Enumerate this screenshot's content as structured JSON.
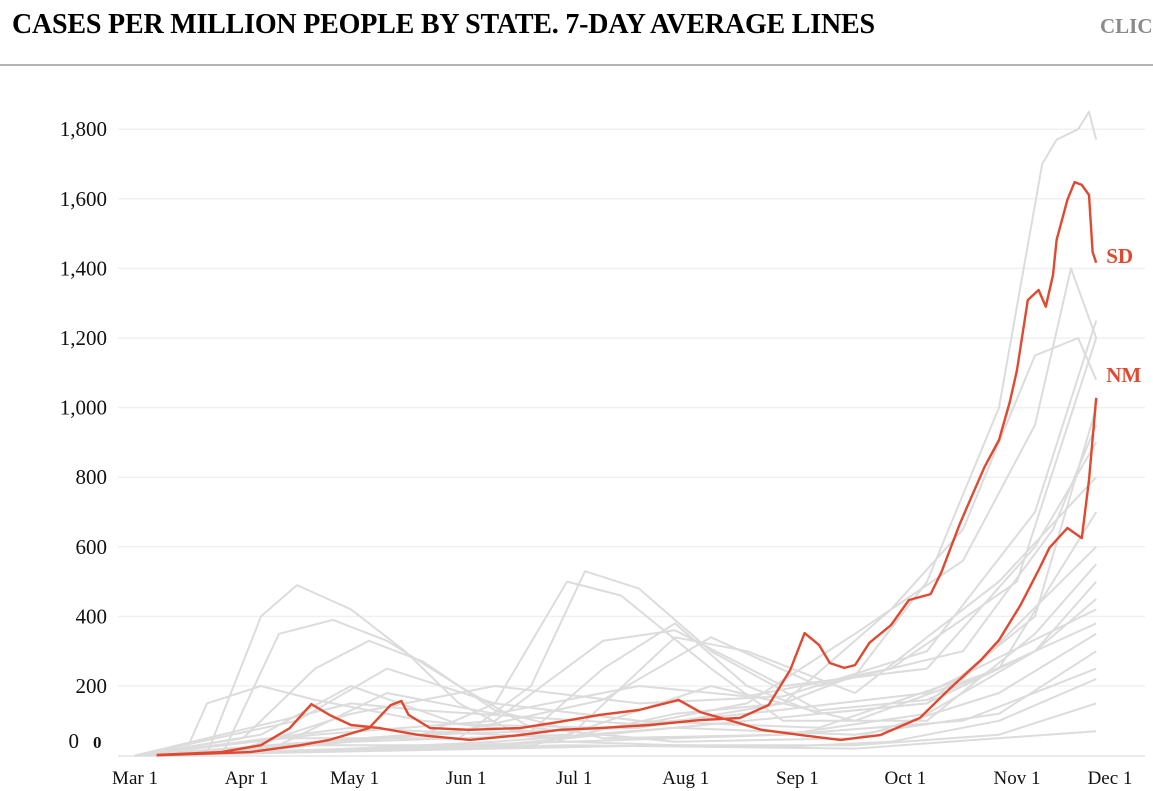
{
  "header": {
    "title": "CASES PER MILLION PEOPLE BY STATE. 7-DAY AVERAGE LINES",
    "click_label": "CLIC"
  },
  "chart_data": {
    "type": "line",
    "title": "CASES PER MILLION PEOPLE BY STATE. 7-DAY AVERAGE LINES",
    "xlabel": "",
    "ylabel": "",
    "x_unit": "days since Mar 1 (2020)",
    "xlim": [
      0,
      270
    ],
    "ylim": [
      0,
      1850
    ],
    "grid": true,
    "yticks": [
      {
        "v": 0,
        "label": "0"
      },
      {
        "v": 200,
        "label": "200"
      },
      {
        "v": 400,
        "label": "400"
      },
      {
        "v": 600,
        "label": "600"
      },
      {
        "v": 800,
        "label": "800"
      },
      {
        "v": 1000,
        "label": "1,000"
      },
      {
        "v": 1200,
        "label": "1,200"
      },
      {
        "v": 1400,
        "label": "1,400"
      },
      {
        "v": 1600,
        "label": "1,600"
      },
      {
        "v": 1800,
        "label": "1,800"
      }
    ],
    "xticks": [
      {
        "d": 0,
        "label": "Mar 1"
      },
      {
        "d": 31,
        "label": "Apr 1"
      },
      {
        "d": 61,
        "label": "May 1"
      },
      {
        "d": 92,
        "label": "Jun 1"
      },
      {
        "d": 122,
        "label": "Jul 1"
      },
      {
        "d": 153,
        "label": "Aug 1"
      },
      {
        "d": 184,
        "label": "Sep 1"
      },
      {
        "d": 214,
        "label": "Oct 1"
      },
      {
        "d": 245,
        "label": "Nov 1"
      },
      {
        "d": 271,
        "label": "Dec 1"
      }
    ],
    "start_annotation": "0",
    "colors": {
      "highlight": "#e0492f",
      "background_lines": "#dcdcdc",
      "grid": "#f0f0f0"
    },
    "highlighted": [
      {
        "name": "SD",
        "points": [
          [
            6,
            2
          ],
          [
            24,
            10
          ],
          [
            35,
            30
          ],
          [
            43,
            79
          ],
          [
            49,
            148
          ],
          [
            54,
            117
          ],
          [
            60,
            88
          ],
          [
            68,
            79
          ],
          [
            79,
            59
          ],
          [
            93,
            45
          ],
          [
            107,
            59
          ],
          [
            118,
            74
          ],
          [
            129,
            79
          ],
          [
            143,
            88
          ],
          [
            157,
            102
          ],
          [
            168,
            108
          ],
          [
            176,
            145
          ],
          [
            182,
            246
          ],
          [
            186,
            352
          ],
          [
            190,
            318
          ],
          [
            193,
            266
          ],
          [
            197,
            252
          ],
          [
            200,
            260
          ],
          [
            204,
            324
          ],
          [
            210,
            375
          ],
          [
            215,
            447
          ],
          [
            221,
            464
          ],
          [
            224,
            527
          ],
          [
            229,
            663
          ],
          [
            232,
            735
          ],
          [
            236,
            830
          ],
          [
            240,
            907
          ],
          [
            243,
            1016
          ],
          [
            245,
            1108
          ],
          [
            248,
            1309
          ],
          [
            251,
            1338
          ],
          [
            253,
            1290
          ],
          [
            255,
            1381
          ],
          [
            256,
            1482
          ],
          [
            259,
            1597
          ],
          [
            261,
            1648
          ],
          [
            263,
            1640
          ],
          [
            265,
            1611
          ],
          [
            266,
            1447
          ],
          [
            267,
            1416
          ]
        ]
      },
      {
        "name": "NM",
        "points": [
          [
            6,
            1
          ],
          [
            32,
            10
          ],
          [
            46,
            30
          ],
          [
            54,
            45
          ],
          [
            65,
            79
          ],
          [
            71,
            145
          ],
          [
            74,
            157
          ],
          [
            76,
            117
          ],
          [
            82,
            79
          ],
          [
            93,
            74
          ],
          [
            107,
            79
          ],
          [
            118,
            97
          ],
          [
            129,
            117
          ],
          [
            140,
            131
          ],
          [
            151,
            160
          ],
          [
            157,
            125
          ],
          [
            165,
            102
          ],
          [
            174,
            74
          ],
          [
            185,
            59
          ],
          [
            196,
            45
          ],
          [
            207,
            59
          ],
          [
            218,
            108
          ],
          [
            226,
            189
          ],
          [
            235,
            275
          ],
          [
            240,
            332
          ],
          [
            246,
            433
          ],
          [
            251,
            533
          ],
          [
            254,
            597
          ],
          [
            259,
            654
          ],
          [
            263,
            625
          ],
          [
            265,
            792
          ],
          [
            267,
            1028
          ]
        ]
      }
    ],
    "background_series": [
      [
        [
          0,
          0
        ],
        [
          20,
          5
        ],
        [
          35,
          400
        ],
        [
          45,
          490
        ],
        [
          60,
          420
        ],
        [
          75,
          300
        ],
        [
          90,
          150
        ],
        [
          105,
          70
        ],
        [
          120,
          40
        ],
        [
          150,
          30
        ],
        [
          180,
          25
        ],
        [
          210,
          40
        ],
        [
          240,
          100
        ],
        [
          267,
          220
        ]
      ],
      [
        [
          0,
          0
        ],
        [
          25,
          20
        ],
        [
          40,
          350
        ],
        [
          55,
          390
        ],
        [
          70,
          330
        ],
        [
          90,
          200
        ],
        [
          110,
          80
        ],
        [
          150,
          40
        ],
        [
          200,
          50
        ],
        [
          240,
          180
        ],
        [
          267,
          350
        ]
      ],
      [
        [
          0,
          0
        ],
        [
          30,
          50
        ],
        [
          50,
          250
        ],
        [
          65,
          330
        ],
        [
          80,
          270
        ],
        [
          100,
          130
        ],
        [
          130,
          50
        ],
        [
          180,
          60
        ],
        [
          220,
          120
        ],
        [
          250,
          300
        ],
        [
          267,
          500
        ]
      ],
      [
        [
          0,
          0
        ],
        [
          14,
          10
        ],
        [
          20,
          150
        ],
        [
          35,
          200
        ],
        [
          50,
          160
        ],
        [
          80,
          100
        ],
        [
          110,
          70
        ],
        [
          130,
          250
        ],
        [
          150,
          380
        ],
        [
          170,
          200
        ],
        [
          190,
          120
        ],
        [
          220,
          150
        ],
        [
          250,
          300
        ],
        [
          267,
          450
        ]
      ],
      [
        [
          0,
          0
        ],
        [
          40,
          30
        ],
        [
          80,
          60
        ],
        [
          100,
          150
        ],
        [
          120,
          500
        ],
        [
          135,
          460
        ],
        [
          160,
          250
        ],
        [
          180,
          100
        ],
        [
          220,
          100
        ],
        [
          250,
          350
        ],
        [
          267,
          550
        ]
      ],
      [
        [
          0,
          0
        ],
        [
          40,
          50
        ],
        [
          90,
          50
        ],
        [
          110,
          200
        ],
        [
          125,
          530
        ],
        [
          140,
          480
        ],
        [
          160,
          300
        ],
        [
          190,
          130
        ],
        [
          220,
          160
        ],
        [
          250,
          300
        ],
        [
          267,
          380
        ]
      ],
      [
        [
          0,
          0
        ],
        [
          40,
          20
        ],
        [
          80,
          60
        ],
        [
          140,
          80
        ],
        [
          180,
          150
        ],
        [
          200,
          230
        ],
        [
          220,
          500
        ],
        [
          240,
          1000
        ],
        [
          252,
          1700
        ],
        [
          256,
          1770
        ],
        [
          262,
          1800
        ],
        [
          265,
          1850
        ],
        [
          267,
          1770
        ]
      ],
      [
        [
          0,
          0
        ],
        [
          50,
          30
        ],
        [
          110,
          30
        ],
        [
          150,
          120
        ],
        [
          180,
          150
        ],
        [
          210,
          420
        ],
        [
          230,
          650
        ],
        [
          250,
          1150
        ],
        [
          262,
          1200
        ],
        [
          267,
          1080
        ]
      ],
      [
        [
          0,
          0
        ],
        [
          60,
          150
        ],
        [
          80,
          130
        ],
        [
          140,
          90
        ],
        [
          170,
          150
        ],
        [
          200,
          350
        ],
        [
          230,
          560
        ],
        [
          250,
          950
        ],
        [
          260,
          1400
        ],
        [
          267,
          1200
        ]
      ],
      [
        [
          0,
          0
        ],
        [
          50,
          10
        ],
        [
          100,
          20
        ],
        [
          150,
          30
        ],
        [
          200,
          30
        ],
        [
          240,
          60
        ],
        [
          267,
          150
        ]
      ],
      [
        [
          0,
          0
        ],
        [
          60,
          40
        ],
        [
          120,
          60
        ],
        [
          160,
          200
        ],
        [
          200,
          100
        ],
        [
          240,
          250
        ],
        [
          267,
          700
        ]
      ],
      [
        [
          0,
          0
        ],
        [
          50,
          60
        ],
        [
          100,
          100
        ],
        [
          130,
          330
        ],
        [
          150,
          360
        ],
        [
          180,
          200
        ],
        [
          220,
          250
        ],
        [
          250,
          600
        ],
        [
          267,
          900
        ]
      ],
      [
        [
          0,
          0
        ],
        [
          45,
          100
        ],
        [
          70,
          250
        ],
        [
          100,
          150
        ],
        [
          140,
          100
        ],
        [
          190,
          80
        ],
        [
          230,
          220
        ],
        [
          267,
          600
        ]
      ],
      [
        [
          0,
          0
        ],
        [
          40,
          10
        ],
        [
          100,
          40
        ],
        [
          150,
          80
        ],
        [
          200,
          60
        ],
        [
          240,
          120
        ],
        [
          267,
          300
        ]
      ],
      [
        [
          0,
          0
        ],
        [
          100,
          30
        ],
        [
          170,
          100
        ],
        [
          220,
          150
        ],
        [
          250,
          400
        ],
        [
          267,
          1000
        ]
      ],
      [
        [
          0,
          0
        ],
        [
          60,
          80
        ],
        [
          120,
          50
        ],
        [
          150,
          340
        ],
        [
          170,
          300
        ],
        [
          200,
          180
        ],
        [
          240,
          500
        ],
        [
          267,
          800
        ]
      ],
      [
        [
          0,
          0
        ],
        [
          120,
          30
        ],
        [
          200,
          20
        ],
        [
          267,
          70
        ]
      ],
      [
        [
          0,
          0
        ],
        [
          30,
          20
        ],
        [
          60,
          120
        ],
        [
          100,
          200
        ],
        [
          140,
          150
        ],
        [
          180,
          170
        ],
        [
          220,
          300
        ],
        [
          250,
          700
        ],
        [
          267,
          1250
        ]
      ],
      [
        [
          0,
          0
        ],
        [
          40,
          30
        ],
        [
          70,
          180
        ],
        [
          100,
          120
        ],
        [
          140,
          200
        ],
        [
          170,
          170
        ],
        [
          210,
          250
        ],
        [
          245,
          500
        ],
        [
          267,
          1200
        ]
      ],
      [
        [
          0,
          0
        ],
        [
          50,
          40
        ],
        [
          90,
          70
        ],
        [
          130,
          160
        ],
        [
          160,
          340
        ],
        [
          190,
          200
        ],
        [
          230,
          300
        ],
        [
          255,
          650
        ],
        [
          267,
          950
        ]
      ],
      [
        [
          0,
          0
        ],
        [
          60,
          20
        ],
        [
          120,
          40
        ],
        [
          180,
          60
        ],
        [
          230,
          100
        ],
        [
          267,
          250
        ]
      ],
      [
        [
          0,
          0
        ],
        [
          35,
          60
        ],
        [
          60,
          200
        ],
        [
          90,
          90
        ],
        [
          130,
          80
        ],
        [
          170,
          120
        ],
        [
          220,
          180
        ],
        [
          267,
          420
        ]
      ]
    ]
  }
}
